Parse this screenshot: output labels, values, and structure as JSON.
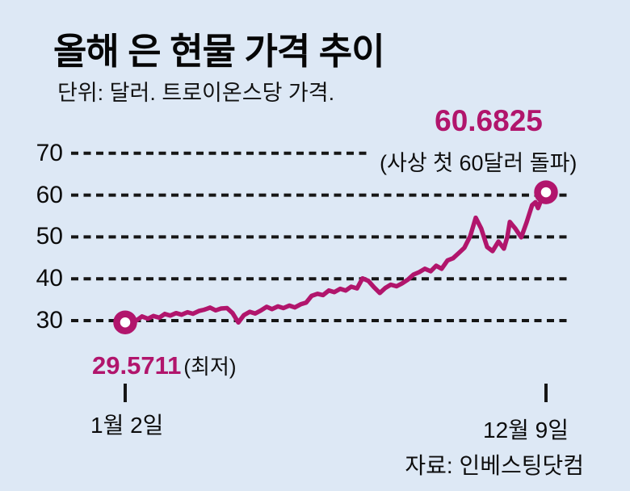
{
  "header": {
    "title": "올해 은 현물 가격 추이",
    "subtitle": "단위: 달러. 트로이온스당 가격."
  },
  "annotations": {
    "peak_value": "60.6825",
    "peak_note": "(사상 첫 60달러 돌파)",
    "low_value": "29.5711",
    "low_note": "(최저)"
  },
  "axis": {
    "y_tick_labels": [
      "70",
      "60",
      "50",
      "40",
      "30"
    ],
    "x_start_label": "1월 2일",
    "x_end_label": "12월 9일"
  },
  "source": "자료: 인베스팅닷컴",
  "colors": {
    "background": "#dde8f5",
    "accent": "#b1156c",
    "grid": "#161616",
    "marker_fill": "#ffffff"
  },
  "chart_data": {
    "type": "line",
    "title": "올해 은 현물 가격 추이",
    "unit": "달러 (트로이온스당 가격)",
    "x_axis": {
      "start_label": "1월 2일",
      "end_label": "12월 9일"
    },
    "y_ticks": [
      30,
      40,
      50,
      60,
      70
    ],
    "ylim": [
      27,
      73
    ],
    "grid": true,
    "start_point": {
      "label": "1월 2일",
      "value": 29.5711,
      "note": "최저"
    },
    "end_point": {
      "label": "12월 9일",
      "value": 60.6825,
      "note": "사상 첫 60달러 돌파"
    },
    "points": [
      [
        0.0,
        29.5711
      ],
      [
        0.013,
        30.3
      ],
      [
        0.027,
        30.05
      ],
      [
        0.04,
        31.0
      ],
      [
        0.054,
        30.45
      ],
      [
        0.067,
        31.1
      ],
      [
        0.081,
        30.7
      ],
      [
        0.094,
        31.6
      ],
      [
        0.107,
        31.2
      ],
      [
        0.121,
        31.8
      ],
      [
        0.134,
        31.4
      ],
      [
        0.148,
        32.0
      ],
      [
        0.161,
        31.65
      ],
      [
        0.175,
        32.3
      ],
      [
        0.188,
        32.6
      ],
      [
        0.202,
        33.1
      ],
      [
        0.215,
        32.45
      ],
      [
        0.228,
        32.9
      ],
      [
        0.242,
        33.0
      ],
      [
        0.255,
        31.8
      ],
      [
        0.269,
        29.55
      ],
      [
        0.282,
        31.3
      ],
      [
        0.296,
        32.1
      ],
      [
        0.309,
        31.7
      ],
      [
        0.322,
        32.4
      ],
      [
        0.336,
        33.3
      ],
      [
        0.349,
        32.75
      ],
      [
        0.363,
        33.4
      ],
      [
        0.376,
        33.0
      ],
      [
        0.39,
        33.6
      ],
      [
        0.403,
        33.15
      ],
      [
        0.417,
        33.9
      ],
      [
        0.43,
        34.3
      ],
      [
        0.443,
        35.9
      ],
      [
        0.457,
        36.4
      ],
      [
        0.47,
        36.1
      ],
      [
        0.484,
        37.2
      ],
      [
        0.497,
        36.8
      ],
      [
        0.511,
        37.6
      ],
      [
        0.524,
        37.2
      ],
      [
        0.537,
        38.1
      ],
      [
        0.551,
        37.7
      ],
      [
        0.564,
        40.1
      ],
      [
        0.578,
        39.5
      ],
      [
        0.591,
        38.0
      ],
      [
        0.605,
        36.6
      ],
      [
        0.618,
        37.8
      ],
      [
        0.631,
        38.6
      ],
      [
        0.645,
        38.2
      ],
      [
        0.658,
        38.9
      ],
      [
        0.672,
        39.8
      ],
      [
        0.685,
        41.0
      ],
      [
        0.699,
        41.6
      ],
      [
        0.712,
        42.4
      ],
      [
        0.726,
        41.8
      ],
      [
        0.739,
        43.1
      ],
      [
        0.752,
        42.4
      ],
      [
        0.766,
        44.4
      ],
      [
        0.779,
        44.9
      ],
      [
        0.793,
        46.2
      ],
      [
        0.806,
        47.4
      ],
      [
        0.82,
        50.2
      ],
      [
        0.833,
        54.6
      ],
      [
        0.846,
        52.0
      ],
      [
        0.86,
        47.6
      ],
      [
        0.873,
        46.6
      ],
      [
        0.887,
        48.9
      ],
      [
        0.9,
        47.2
      ],
      [
        0.908,
        50.0
      ],
      [
        0.914,
        53.6
      ],
      [
        0.927,
        52.0
      ],
      [
        0.941,
        49.9
      ],
      [
        0.954,
        53.5
      ],
      [
        0.967,
        57.6
      ],
      [
        0.975,
        58.3
      ],
      [
        0.981,
        56.9
      ],
      [
        0.99,
        59.2
      ],
      [
        1.0,
        60.6825
      ]
    ]
  }
}
